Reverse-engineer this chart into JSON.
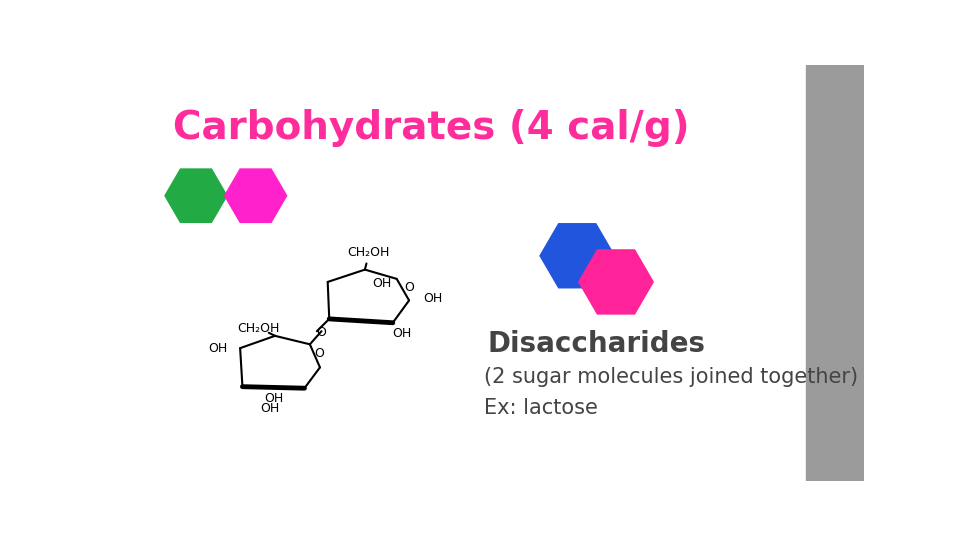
{
  "title": "Carbohydrates (4 cal/g)",
  "title_color": "#FF2D9B",
  "title_fontsize": 28,
  "background_color": "#FFFFFF",
  "right_panel_color": "#9B9B9B",
  "hex1_color": "#22AA44",
  "hex2_color": "#FF22CC",
  "hex3_color": "#2255DD",
  "hex4_color": "#FF2299",
  "disaccharides_label": "Disaccharides",
  "disaccharides_fontsize": 20,
  "subtitle_label": "(2 sugar molecules joined together)",
  "subtitle_fontsize": 15,
  "example_label": "Ex: lactose",
  "example_fontsize": 15,
  "text_color": "#444444",
  "figwidth": 9.6,
  "figheight": 5.4,
  "dpi": 100
}
